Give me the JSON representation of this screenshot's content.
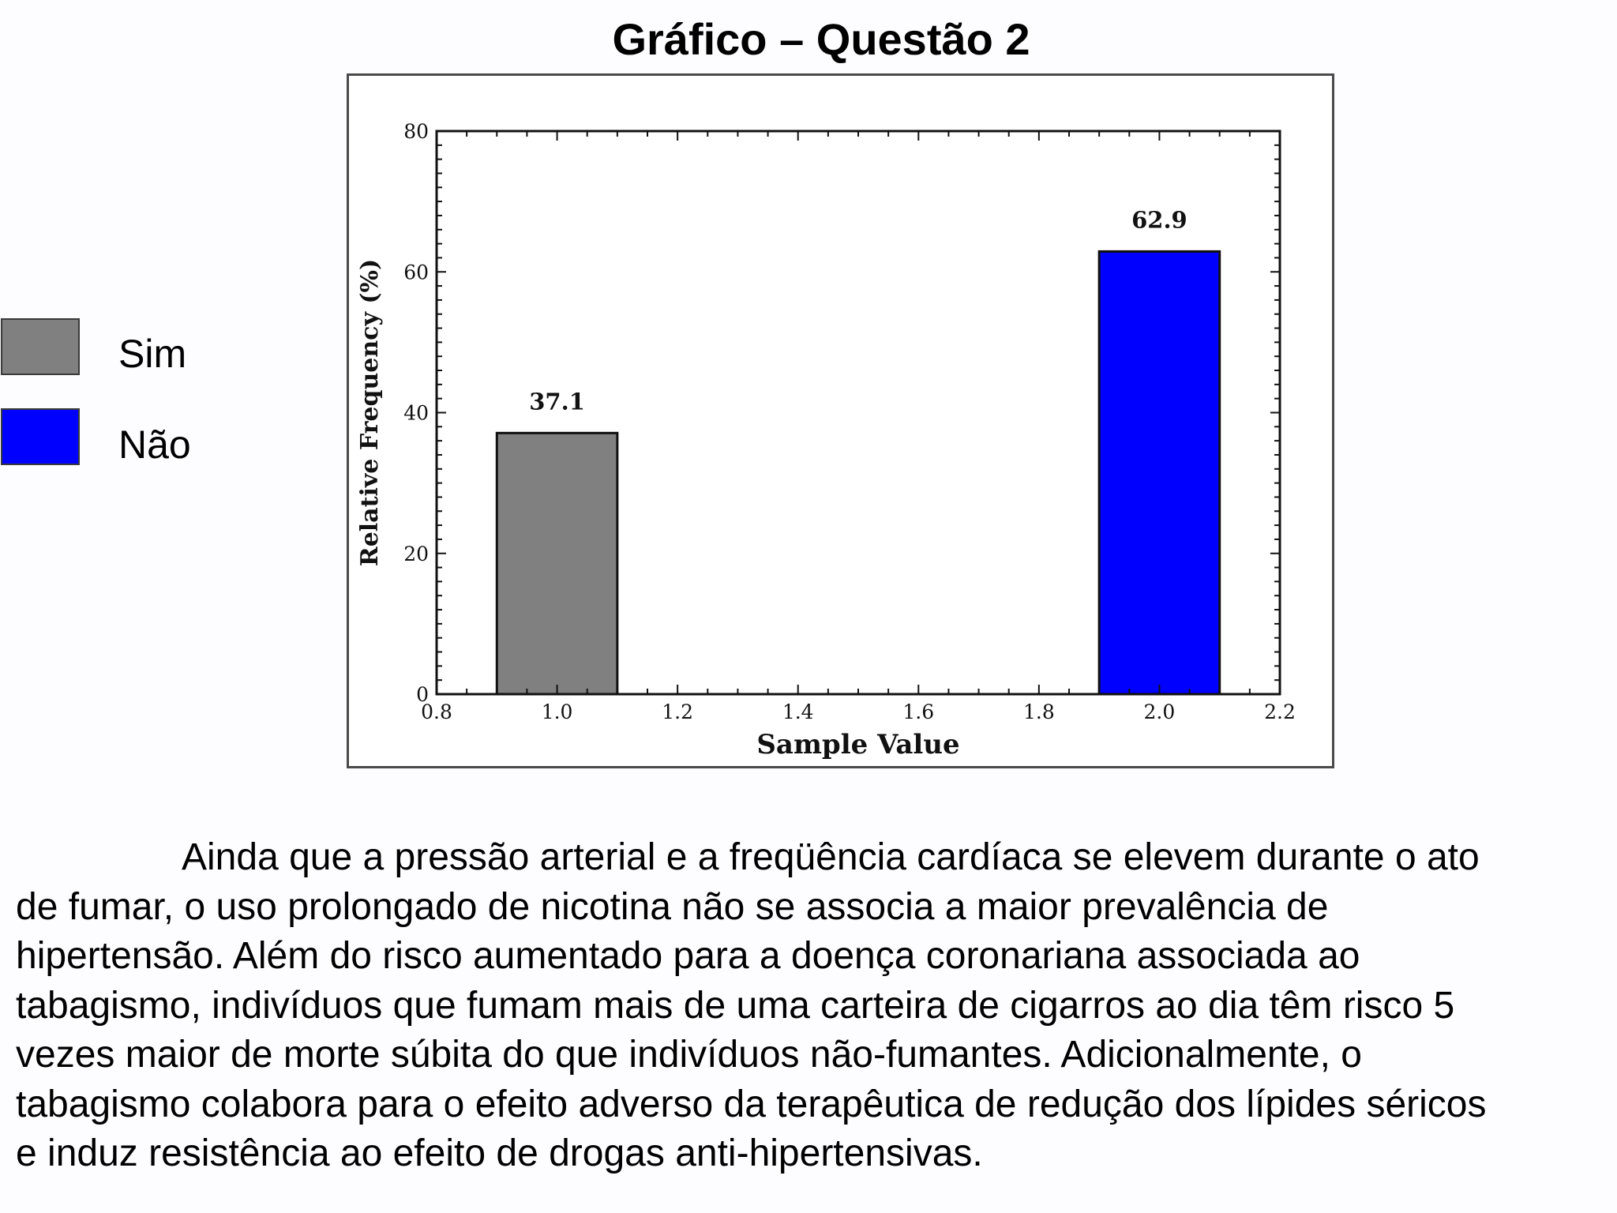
{
  "page": {
    "title": "Gráfico – Questão 2"
  },
  "legend": [
    {
      "label": "Sim",
      "color": "#808080"
    },
    {
      "label": "Não",
      "color": "#0000ff"
    }
  ],
  "chart_data": {
    "type": "bar",
    "x": [
      1.0,
      2.0
    ],
    "values": [
      37.1,
      62.9
    ],
    "data_labels": [
      "37.1",
      "62.9"
    ],
    "bar_colors": [
      "#808080",
      "#0000ff"
    ],
    "bar_width": 0.2,
    "xlabel": "Sample Value",
    "ylabel": "Relative Frequency (%)",
    "xlim": [
      0.8,
      2.2
    ],
    "ylim": [
      0,
      80
    ],
    "xticks": [
      "0.8",
      "1.0",
      "1.2",
      "1.4",
      "1.6",
      "1.8",
      "2.0",
      "2.2"
    ],
    "yticks": [
      "0",
      "20",
      "40",
      "60",
      "80"
    ],
    "grid": false,
    "legend_placement": "left"
  },
  "body_text": {
    "lines": [
      "Ainda que a pressão arterial e a freqüência cardíaca se elevem durante o ato",
      "de fumar, o uso prolongado de nicotina não se associa a maior prevalência de",
      "hipertensão. Além do risco aumentado para a doença coronariana associada ao",
      "tabagismo, indivíduos que fumam mais de uma carteira de cigarros ao dia têm risco 5",
      "vezes maior de morte súbita do que indivíduos não-fumantes. Adicionalmente, o",
      "tabagismo colabora para o efeito adverso da terapêutica de redução dos lípides séricos",
      "e induz resistência ao efeito de drogas anti-hipertensivas."
    ]
  }
}
